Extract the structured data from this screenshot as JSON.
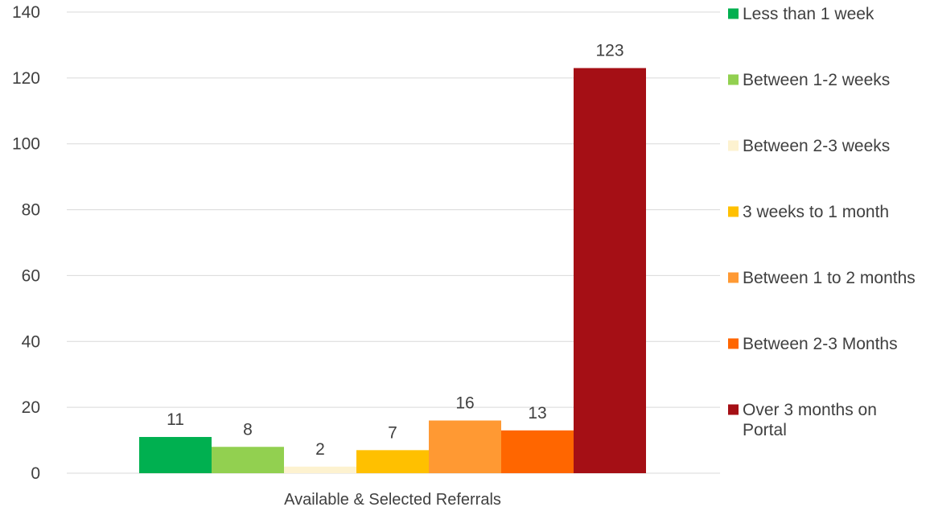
{
  "chart_data": {
    "type": "bar",
    "categories": [
      "Available & Selected Referrals"
    ],
    "series": [
      {
        "name": "Less than 1 week",
        "values": [
          11
        ],
        "color": "#00b050"
      },
      {
        "name": "Between 1-2 weeks",
        "values": [
          8
        ],
        "color": "#92d050"
      },
      {
        "name": "Between 2-3 weeks",
        "values": [
          2
        ],
        "color": "#fdf2d0"
      },
      {
        "name": "3 weeks to 1 month",
        "values": [
          7
        ],
        "color": "#ffc000"
      },
      {
        "name": "Between 1 to 2 months",
        "values": [
          16
        ],
        "color": "#ff9933"
      },
      {
        "name": "Between 2-3 Months",
        "values": [
          13
        ],
        "color": "#ff6600"
      },
      {
        "name": "Over 3 months on Portal",
        "values": [
          123
        ],
        "color": "#a50f15"
      }
    ],
    "title": "",
    "xlabel": "",
    "ylabel": "",
    "ylim": [
      0,
      140
    ],
    "yticks": [
      0,
      20,
      40,
      60,
      80,
      100,
      120,
      140
    ],
    "grid": true,
    "legend_position": "right",
    "data_labels": true
  }
}
